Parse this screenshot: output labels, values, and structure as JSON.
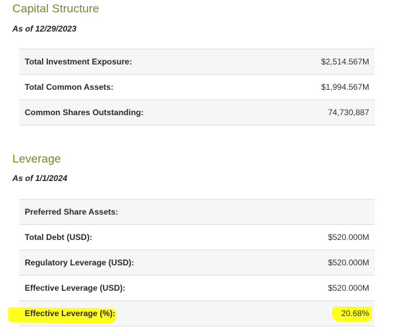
{
  "capital_structure": {
    "title": "Capital Structure",
    "as_of": "As of 12/29/2023",
    "rows": [
      {
        "label": "Total Investment Exposure:",
        "value": "$2,514.567M"
      },
      {
        "label": "Total Common Assets:",
        "value": "$1,994.567M"
      },
      {
        "label": "Common Shares Outstanding:",
        "value": "74,730,887"
      }
    ]
  },
  "leverage": {
    "title": "Leverage",
    "as_of": "As of 1/1/2024",
    "rows": [
      {
        "label": "Preferred Share Assets:",
        "value": ""
      },
      {
        "label": "Total Debt (USD):",
        "value": "$520.000M"
      },
      {
        "label": "Regulatory Leverage (USD):",
        "value": "$520.000M"
      },
      {
        "label": "Effective Leverage (USD):",
        "value": "$520.000M"
      },
      {
        "label": "Effective Leverage (%):",
        "value": "20.68%"
      }
    ]
  },
  "colors": {
    "title_green": "#6b8e23",
    "highlight_yellow": "#ffff1a"
  }
}
